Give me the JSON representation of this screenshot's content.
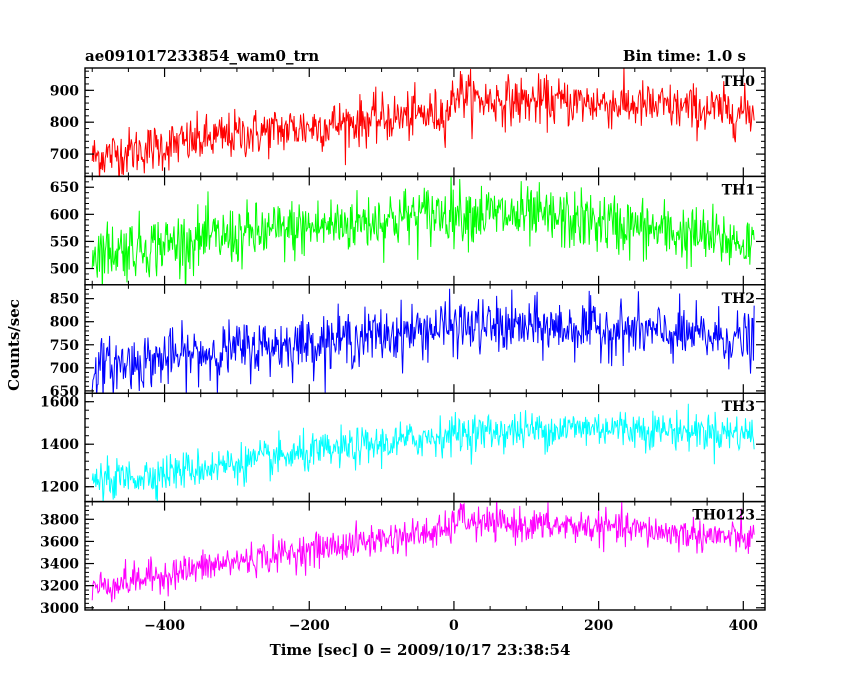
{
  "header": {
    "title": "ae091017233854_wam0_trn",
    "bin_time": "Bin time: 1.0 s"
  },
  "chart_data": {
    "type": "line",
    "title": "ae091017233854_wam0_trn",
    "xlabel": "Time [sec] 0 = 2009/10/17 23:38:54",
    "ylabel": "Counts/sec",
    "xlim": [
      -510,
      430
    ],
    "x_ticks": [
      -400,
      -200,
      0,
      200,
      400
    ],
    "x_start": -500,
    "x_end": 415,
    "x_step": 1,
    "grid": false,
    "legend": "none",
    "panels": [
      {
        "name": "TH0",
        "color": "#ff0000",
        "ylim": [
          630,
          970
        ],
        "yticks": [
          700,
          800,
          900
        ],
        "ytick_labels": [
          "700",
          "800",
          "900"
        ],
        "trend": [
          [
            -500,
            690
          ],
          [
            -300,
            760
          ],
          [
            -100,
            810
          ],
          [
            -10,
            830
          ],
          [
            5,
            900
          ],
          [
            30,
            870
          ],
          [
            200,
            860
          ],
          [
            415,
            830
          ]
        ],
        "noise_sd": 38
      },
      {
        "name": "TH1",
        "color": "#00ff00",
        "ylim": [
          470,
          670
        ],
        "yticks": [
          500,
          550,
          600,
          650
        ],
        "ytick_labels": [
          "500",
          "550",
          "600",
          "650"
        ],
        "trend": [
          [
            -500,
            530
          ],
          [
            -300,
            560
          ],
          [
            -100,
            590
          ],
          [
            0,
            605
          ],
          [
            200,
            585
          ],
          [
            415,
            545
          ]
        ],
        "noise_sd": 28
      },
      {
        "name": "TH2",
        "color": "#0000ff",
        "ylim": [
          645,
          880
        ],
        "yticks": [
          650,
          700,
          750,
          800,
          850
        ],
        "ytick_labels": [
          "650",
          "700",
          "750",
          "800",
          "850"
        ],
        "trend": [
          [
            -500,
            700
          ],
          [
            -300,
            740
          ],
          [
            -100,
            770
          ],
          [
            0,
            790
          ],
          [
            200,
            785
          ],
          [
            415,
            760
          ]
        ],
        "noise_sd": 30
      },
      {
        "name": "TH3",
        "color": "#00ffff",
        "ylim": [
          1130,
          1640
        ],
        "yticks": [
          1200,
          1400,
          1600
        ],
        "ytick_labels": [
          "1200",
          "1400",
          "1600"
        ],
        "trend": [
          [
            -500,
            1220
          ],
          [
            -300,
            1310
          ],
          [
            -100,
            1400
          ],
          [
            0,
            1450
          ],
          [
            200,
            1480
          ],
          [
            415,
            1450
          ]
        ],
        "noise_sd": 45
      },
      {
        "name": "TH0123",
        "color": "#ff00ff",
        "ylim": [
          2980,
          3960
        ],
        "yticks": [
          3000,
          3200,
          3400,
          3600,
          3800
        ],
        "ytick_labels": [
          "3000",
          "3200",
          "3400",
          "3600",
          "3800"
        ],
        "trend": [
          [
            -500,
            3180
          ],
          [
            -300,
            3420
          ],
          [
            -100,
            3620
          ],
          [
            -5,
            3700
          ],
          [
            5,
            3830
          ],
          [
            30,
            3760
          ],
          [
            200,
            3730
          ],
          [
            415,
            3620
          ]
        ],
        "noise_sd": 75
      }
    ]
  }
}
